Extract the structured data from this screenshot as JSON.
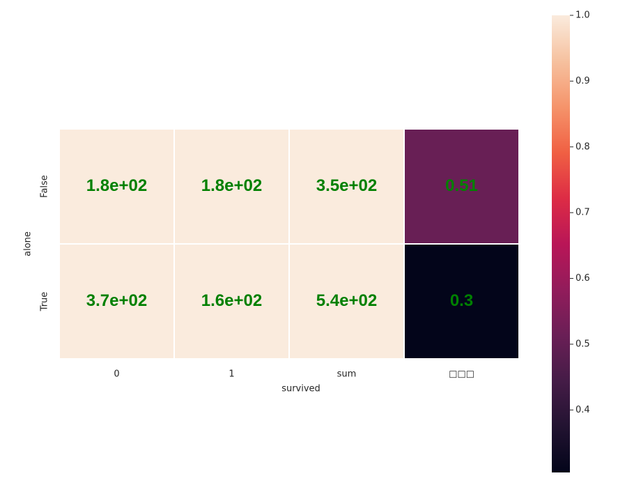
{
  "chart_data": {
    "type": "heatmap",
    "x_label": "survived",
    "y_label": "alone",
    "categories": [
      "0",
      "1",
      "sum",
      "□□□"
    ],
    "rows": [
      "False",
      "True"
    ],
    "values": [
      [
        180,
        180,
        350,
        0.51
      ],
      [
        370,
        160,
        540,
        0.3
      ]
    ],
    "value_labels": [
      [
        "1.8e+02",
        "1.8e+02",
        "3.5e+02",
        "0.51"
      ],
      [
        "3.7e+02",
        "1.6e+02",
        "5.4e+02",
        "0.3"
      ]
    ],
    "annotation_color": "#008000",
    "colormap": [
      "#03051a",
      "#221331",
      "#451c47",
      "#6a1f56",
      "#921c5b",
      "#b91657",
      "#dd2c45",
      "#f06043",
      "#f5946b",
      "#f6c19f",
      "#faebdd"
    ],
    "clim": [
      0.305,
      1.0
    ],
    "cticks": [
      0.4,
      0.5,
      0.6,
      0.7,
      0.8,
      0.9,
      {
        "value": 1.0,
        "label": "1.0"
      }
    ]
  }
}
